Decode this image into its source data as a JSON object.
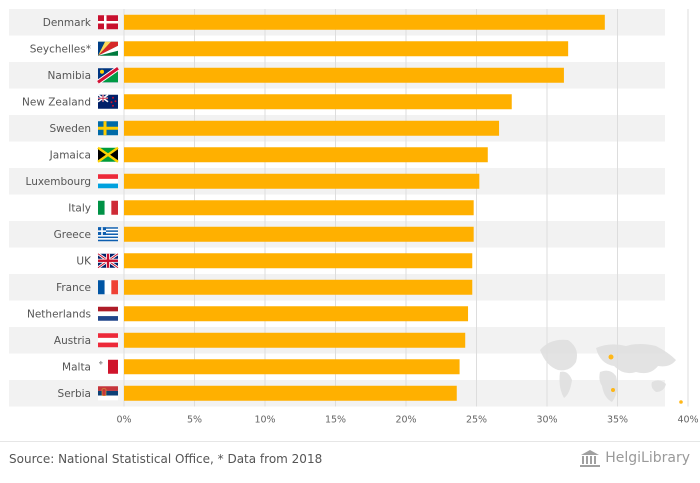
{
  "chart_data": {
    "type": "bar",
    "orientation": "horizontal",
    "categories": [
      "Denmark",
      "Seychelles*",
      "Namibia",
      "New Zealand",
      "Sweden",
      "Jamaica",
      "Luxembourg",
      "Italy",
      "Greece",
      "UK",
      "France",
      "Netherlands",
      "Austria",
      "Malta",
      "Serbia"
    ],
    "values": [
      34.1,
      31.5,
      31.2,
      27.5,
      26.6,
      25.8,
      25.2,
      24.8,
      24.8,
      24.7,
      24.7,
      24.4,
      24.2,
      23.8,
      23.6
    ],
    "value_unit": "%",
    "xlim": [
      0,
      40
    ],
    "x_ticks": [
      "0%",
      "5%",
      "10%",
      "15%",
      "20%",
      "25%",
      "30%",
      "35%",
      "40%"
    ],
    "grid": true,
    "bar_color": "#ffb000",
    "title": "",
    "xlabel": "",
    "ylabel": ""
  },
  "flags": {
    "Denmark": "denmark-flag-icon",
    "Seychelles*": "seychelles-flag-icon",
    "Namibia": "namibia-flag-icon",
    "New Zealand": "new-zealand-flag-icon",
    "Sweden": "sweden-flag-icon",
    "Jamaica": "jamaica-flag-icon",
    "Luxembourg": "luxembourg-flag-icon",
    "Italy": "italy-flag-icon",
    "Greece": "greece-flag-icon",
    "UK": "uk-flag-icon",
    "France": "france-flag-icon",
    "Netherlands": "netherlands-flag-icon",
    "Austria": "austria-flag-icon",
    "Malta": "malta-flag-icon",
    "Serbia": "serbia-flag-icon"
  },
  "footer": {
    "source": "Source: National Statistical Office, * Data from 2018",
    "brand_name": "HelgiLibrary",
    "brand_icon": "building-logo-icon",
    "watermark_icon": "world-map-icon"
  }
}
